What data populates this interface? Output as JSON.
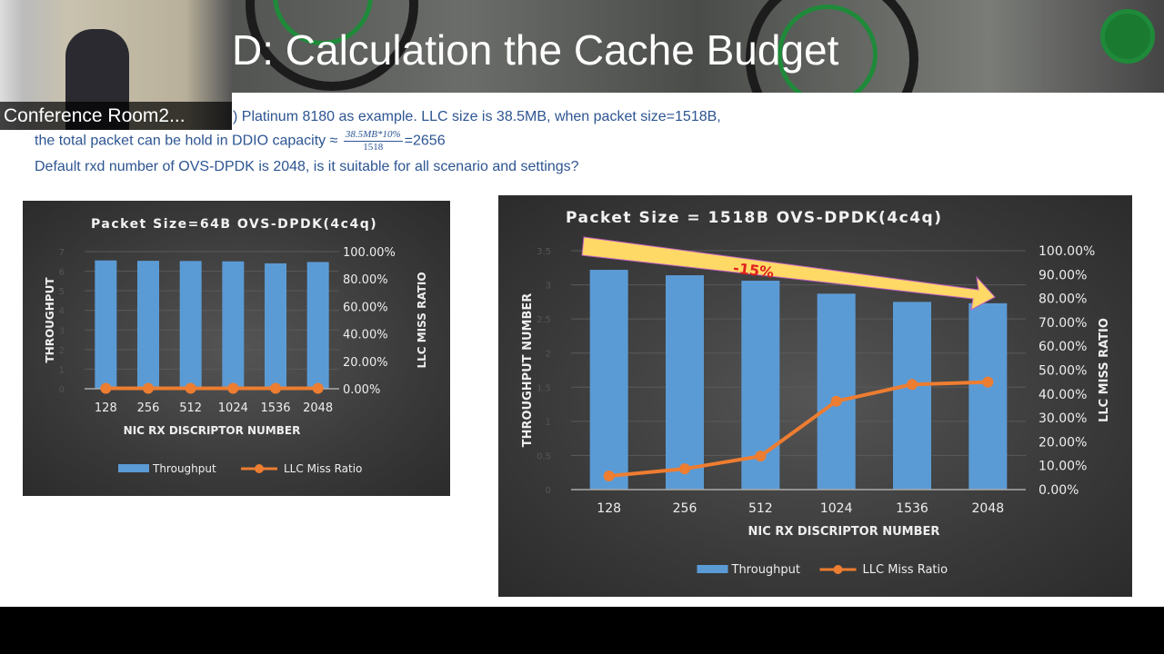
{
  "header": {
    "title": "D:  Calculation the Cache Budget"
  },
  "webcam": {
    "label": "Conference Room2..."
  },
  "body": {
    "line1": ") Platinum 8180  as example. LLC size is 38.5MB, when packet size=1518B,",
    "line2_prefix": "the total packet can be hold in DDIO capacity ≈",
    "fraction_numerator": "38.5MB*10%",
    "fraction_denominator": "1518",
    "line2_suffix": "=2656",
    "line3": "Default rxd number of OVS-DPDK is 2048, is it suitable for all scenario and settings?"
  },
  "colors": {
    "bar": "#5b9bd5",
    "line": "#ed7d31",
    "arrow": "#ffd966",
    "annotation": "#e02020",
    "text": "#2d5592"
  },
  "chart_data": [
    {
      "type": "bar",
      "title": "Packet Size=64B    OVS-DPDK(4c4q)",
      "categories": [
        "128",
        "256",
        "512",
        "1024",
        "1536",
        "2048"
      ],
      "xlabel": "NIC RX DISCRIPTOR NUMBER",
      "ylabel": "THROUGHPUT",
      "y2label": "LLC MISS RATIO",
      "ylim": [
        0,
        7
      ],
      "y_ticks": [
        "0",
        "1",
        "2",
        "3",
        "4",
        "5",
        "6",
        "7"
      ],
      "y2lim": [
        0,
        100
      ],
      "y2_ticks": [
        "0.00%",
        "20.00%",
        "40.00%",
        "60.00%",
        "80.00%",
        "100.00%"
      ],
      "grid": true,
      "legend": "bottom",
      "series": [
        {
          "name": "Throughput",
          "type": "bar",
          "axis": "left",
          "values": [
            6.55,
            6.53,
            6.52,
            6.5,
            6.4,
            6.47
          ]
        },
        {
          "name": "LLC Miss Ratio",
          "type": "line",
          "axis": "right",
          "values": [
            0.3,
            0.3,
            0.3,
            0.3,
            0.3,
            0.3
          ]
        }
      ]
    },
    {
      "type": "bar",
      "title": "Packet Size = 1518B OVS-DPDK(4c4q)",
      "categories": [
        "128",
        "256",
        "512",
        "1024",
        "1536",
        "2048"
      ],
      "xlabel": "NIC RX DISCRIPTOR NUMBER",
      "ylabel": "THROUGHPUT NUMBER",
      "y2label": "LLC MISS RATIO",
      "ylim": [
        0,
        3.5
      ],
      "y_ticks": [
        "0",
        "0.5",
        "1",
        "1.5",
        "2",
        "2.5",
        "3",
        "3.5"
      ],
      "y2lim": [
        0,
        100
      ],
      "y2_ticks": [
        "0.00%",
        "10.00%",
        "20.00%",
        "30.00%",
        "40.00%",
        "50.00%",
        "60.00%",
        "70.00%",
        "80.00%",
        "90.00%",
        "100.00%"
      ],
      "grid": true,
      "legend": "bottom",
      "annotation": "-15%",
      "series": [
        {
          "name": "Throughput",
          "type": "bar",
          "axis": "left",
          "values": [
            3.22,
            3.14,
            3.06,
            2.87,
            2.75,
            2.73
          ]
        },
        {
          "name": "LLC Miss Ratio",
          "type": "line",
          "axis": "right",
          "values": [
            5.7,
            8.7,
            14,
            37,
            44,
            45
          ]
        }
      ]
    }
  ]
}
